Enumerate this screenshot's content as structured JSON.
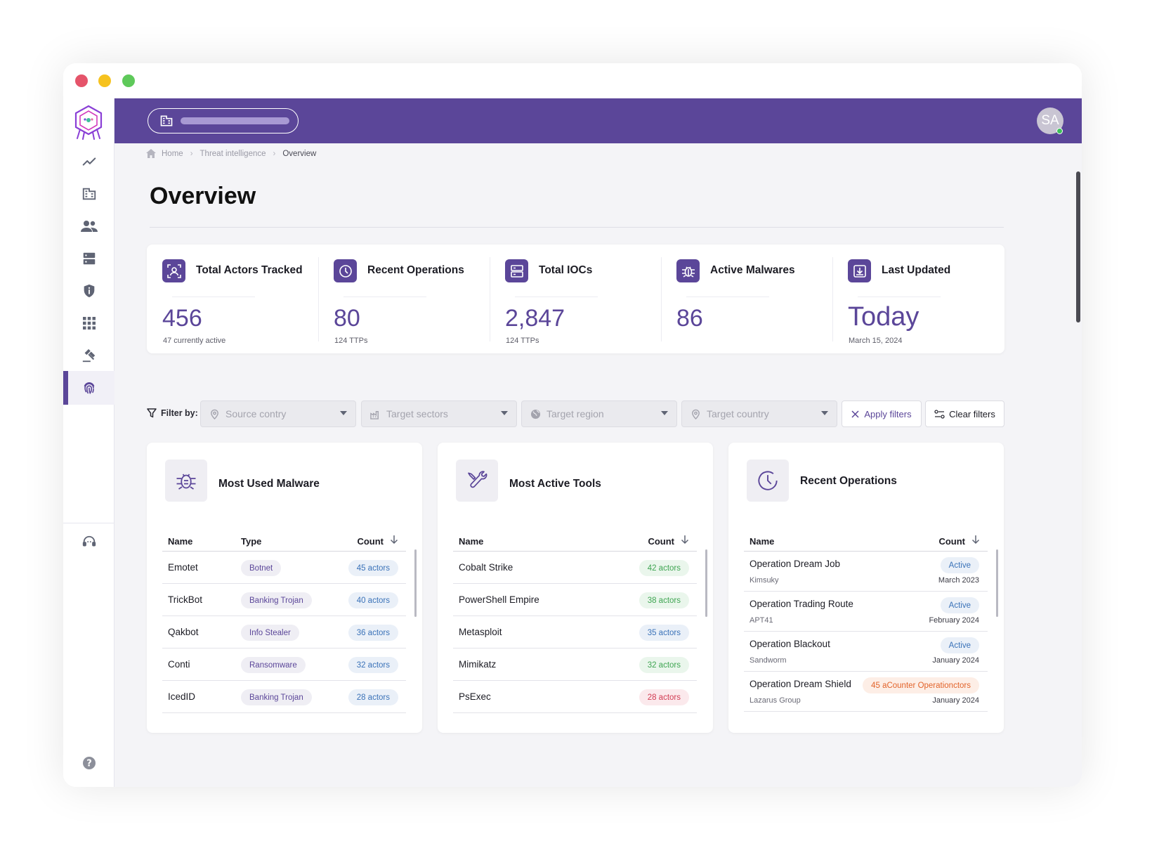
{
  "window": {
    "dots": [
      "#e5546a",
      "#f6c21f",
      "#5ec95a"
    ]
  },
  "sidebar": {
    "items": [
      {
        "icon": "trending-up-icon"
      },
      {
        "icon": "building-icon"
      },
      {
        "icon": "people-icon"
      },
      {
        "icon": "server-icon"
      },
      {
        "icon": "shield-info-icon"
      },
      {
        "icon": "apps-grid-icon"
      },
      {
        "icon": "gavel-icon"
      },
      {
        "icon": "fingerprint-icon",
        "active": true
      }
    ],
    "bottom_items": [
      {
        "icon": "support-agent-icon"
      },
      {
        "icon": "help-icon"
      }
    ]
  },
  "topbar": {
    "avatar_initials": "SA",
    "accent": "#5b4699"
  },
  "breadcrumb": {
    "home": "Home",
    "section": "Threat intelligence",
    "current": "Overview"
  },
  "page": {
    "title": "Overview"
  },
  "stats": [
    {
      "icon": "person-scan-icon",
      "label": "Total Actors Tracked",
      "value": "456",
      "sub": "47 currently active"
    },
    {
      "icon": "clock-icon",
      "label": "Recent Operations",
      "value": "80",
      "sub": "124 TTPs"
    },
    {
      "icon": "server-icon",
      "label": "Total IOCs",
      "value": "2,847",
      "sub": "124 TTPs"
    },
    {
      "icon": "bug-icon",
      "label": "Active Malwares",
      "value": "86",
      "sub": ""
    },
    {
      "icon": "download-box-icon",
      "label": "Last Updated",
      "value": "Today",
      "sub": "March 15, 2024"
    }
  ],
  "filters": {
    "label": "Filter by:",
    "selects": [
      {
        "icon": "pin-icon",
        "placeholder": "Source contry"
      },
      {
        "icon": "factory-icon",
        "placeholder": "Target sectors"
      },
      {
        "icon": "globe-icon",
        "placeholder": "Target region"
      },
      {
        "icon": "pin-icon",
        "placeholder": "Target country"
      }
    ],
    "apply_label": "Apply filters",
    "clear_label": "Clear filters"
  },
  "malware_card": {
    "title": "Most Used Malware",
    "headers": {
      "name": "Name",
      "type": "Type",
      "count": "Count"
    },
    "rows": [
      {
        "name": "Emotet",
        "type": "Botnet",
        "count": "45 actors"
      },
      {
        "name": "TrickBot",
        "type": "Banking Trojan",
        "count": "40 actors"
      },
      {
        "name": "Qakbot",
        "type": "Info Stealer",
        "count": "36 actors"
      },
      {
        "name": "Conti",
        "type": "Ransomware",
        "count": "32 actors"
      },
      {
        "name": "IcedID",
        "type": "Banking Trojan",
        "count": "28 actors"
      }
    ]
  },
  "tools_card": {
    "title": "Most Active Tools",
    "headers": {
      "name": "Name",
      "count": "Count"
    },
    "rows": [
      {
        "name": "Cobalt Strike",
        "count": "42 actors",
        "color": "green"
      },
      {
        "name": "PowerShell Empire",
        "count": "38 actors",
        "color": "green"
      },
      {
        "name": "Metasploit",
        "count": "35 actors",
        "color": "blue"
      },
      {
        "name": "Mimikatz",
        "count": "32 actors",
        "color": "green"
      },
      {
        "name": "PsExec",
        "count": "28 actors",
        "color": "red"
      }
    ]
  },
  "ops_card": {
    "title": "Recent Operations",
    "headers": {
      "name": "Name",
      "count": "Count"
    },
    "rows": [
      {
        "name": "Operation Dream Job",
        "group": "Kimsuky",
        "status": "Active",
        "date": "March 2023",
        "color": "blue"
      },
      {
        "name": "Operation Trading Route",
        "group": "APT41",
        "status": "Active",
        "date": "February 2024",
        "color": "blue"
      },
      {
        "name": "Operation Blackout",
        "group": "Sandworm",
        "status": "Active",
        "date": "January 2024",
        "color": "blue"
      },
      {
        "name": "Operation Dream Shield",
        "group": "Lazarus Group",
        "status": "45 aCounter Operationctors",
        "date": "January 2024",
        "color": "orange"
      }
    ]
  }
}
